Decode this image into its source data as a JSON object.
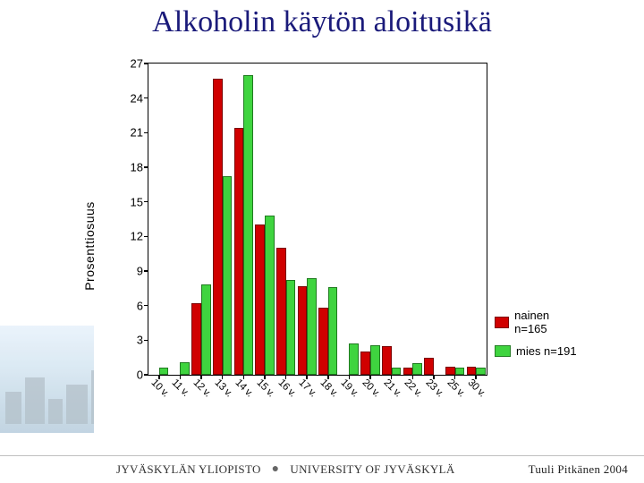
{
  "title": "Alkoholin käytön aloitusikä",
  "chart": {
    "type": "bar",
    "ylabel": "Prosenttiosuus",
    "ylim": [
      0,
      27
    ],
    "ytick_step": 3,
    "background_color": "#ffffff",
    "plot_border_color": "#000000",
    "bar_group_width": 0.9,
    "bar_width": 0.45,
    "categories": [
      "10 v.",
      "11 v.",
      "12 v.",
      "13 v.",
      "14 v.",
      "15 v.",
      "16 v.",
      "17 v.",
      "18 v.",
      "19 v.",
      "20 v.",
      "21 v.",
      "22 v.",
      "23 v.",
      "25 v.",
      "30 v."
    ],
    "series": [
      {
        "key": "nainen",
        "label": "nainen n=165",
        "color": "#d00000",
        "border_color": "#7a0000",
        "values": [
          0,
          0,
          6.2,
          25.7,
          21.4,
          13.0,
          11.0,
          7.7,
          5.8,
          0,
          2.0,
          2.5,
          0.6,
          1.5,
          0.7,
          0.7
        ]
      },
      {
        "key": "mies",
        "label": "mies n=191",
        "color": "#3fd43f",
        "border_color": "#1f7a1f",
        "values": [
          0.6,
          1.1,
          7.8,
          17.2,
          26.0,
          13.8,
          8.2,
          8.4,
          7.6,
          2.7,
          2.6,
          0.6,
          1.0,
          0,
          0.6,
          0.6
        ]
      }
    ],
    "label_fontsize": 14,
    "tick_fontsize": 13,
    "xtick_rotation_deg": 45
  },
  "legend_position": "right",
  "footer": {
    "uni_fi": "JYVÄSKYLÄN YLIOPISTO",
    "uni_en": "UNIVERSITY OF JYVÄSKYLÄ",
    "author": "Tuuli Pitkänen 2004"
  },
  "colors": {
    "title_color": "#1a1a7a",
    "footer_rule": "#c0c0c0"
  }
}
